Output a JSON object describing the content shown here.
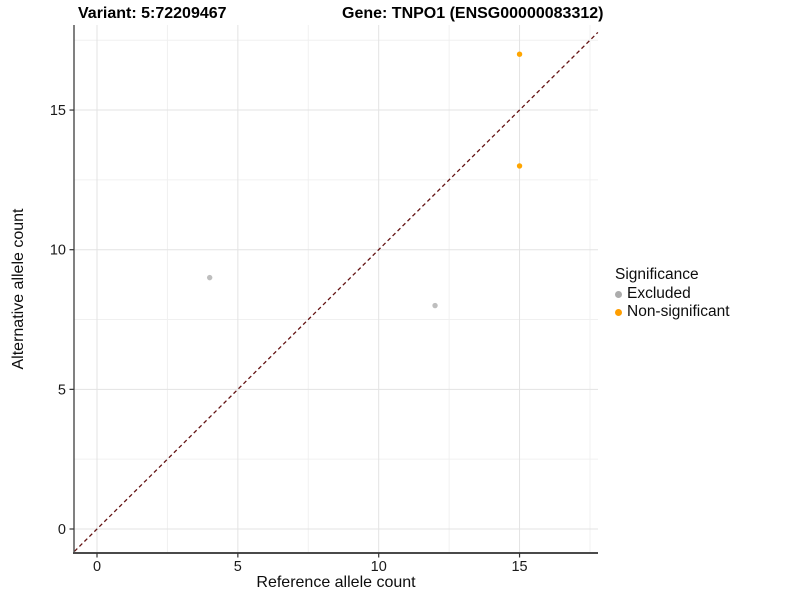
{
  "titles": {
    "variant": "Variant: 5:72209467",
    "gene": "Gene: TNPO1 (ENSG00000083312)"
  },
  "chart_data": {
    "type": "scatter",
    "xlabel": "Reference allele count",
    "ylabel": "Alternative allele count",
    "x_ticks": [
      0,
      5,
      10,
      15
    ],
    "y_ticks": [
      0,
      5,
      10,
      15
    ],
    "x_minor_ticks": [
      2.5,
      7.5,
      12.5,
      17.5
    ],
    "y_minor_ticks": [
      2.5,
      7.5,
      12.5,
      17.5
    ],
    "xlim": [
      -0.8,
      17.78
    ],
    "ylim": [
      -0.85,
      18.05
    ],
    "grid": {
      "major_color": "#E3E3E3",
      "minor_color": "#F0F0F0"
    },
    "axis_line_color": "#4a4a4a",
    "tick_color": "#333333",
    "identity_line": {
      "equation": "y = x",
      "style": "dashed",
      "color": "#641414"
    },
    "series": [
      {
        "name": "Excluded",
        "color": "#BEBEBE",
        "points": [
          {
            "x": 4,
            "y": 9
          },
          {
            "x": 12,
            "y": 8
          }
        ]
      },
      {
        "name": "Non-significant",
        "color": "#FFA500",
        "points": [
          {
            "x": 15,
            "y": 13
          },
          {
            "x": 15,
            "y": 17
          }
        ]
      }
    ]
  },
  "legend": {
    "title": "Significance",
    "items": [
      {
        "label": "Excluded",
        "color": "#ACACAC"
      },
      {
        "label": "Non-significant",
        "color": "#FF9E00"
      }
    ]
  }
}
